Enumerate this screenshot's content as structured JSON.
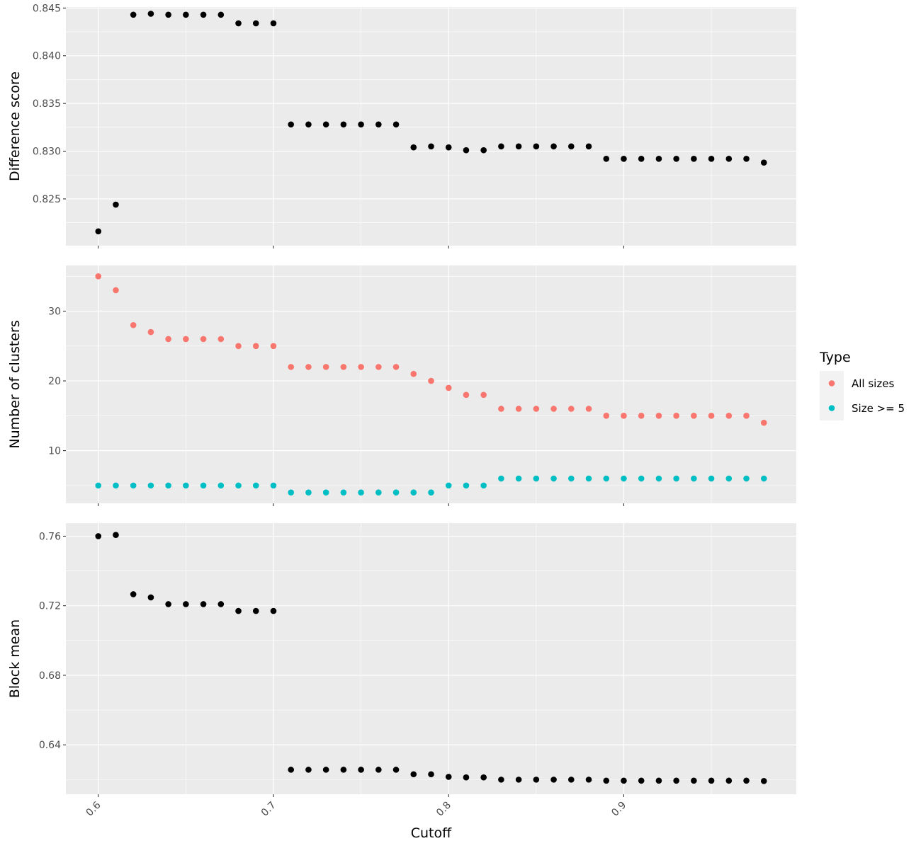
{
  "chart_data": {
    "type": "scatter",
    "xlabel": "Cutoff",
    "x_ticks": [
      0.6,
      0.7,
      0.8,
      0.9
    ],
    "x_tick_labels": [
      "0.6",
      "0.7",
      "0.8",
      "0.9"
    ],
    "xlim": [
      0.5815,
      0.9985
    ],
    "x": [
      0.6,
      0.61,
      0.62,
      0.63,
      0.64,
      0.65,
      0.66,
      0.67,
      0.68,
      0.69,
      0.7,
      0.71,
      0.72,
      0.73,
      0.74,
      0.75,
      0.76,
      0.77,
      0.78,
      0.79,
      0.8,
      0.81,
      0.82,
      0.83,
      0.84,
      0.85,
      0.86,
      0.87,
      0.88,
      0.89,
      0.9,
      0.91,
      0.92,
      0.93,
      0.94,
      0.95,
      0.96,
      0.97,
      0.98
    ],
    "grid": true,
    "legend": {
      "title": "Type",
      "position": "right",
      "entries": [
        {
          "label": "All sizes",
          "color": "#F8766D"
        },
        {
          "label": "Size >= 5",
          "color": "#00BFC4"
        }
      ]
    },
    "panels": [
      {
        "ylabel": "Difference score",
        "y_ticks": [
          0.825,
          0.83,
          0.835,
          0.84,
          0.845
        ],
        "y_tick_labels": [
          "0.825",
          "0.830",
          "0.835",
          "0.840",
          "0.845"
        ],
        "ylim": [
          0.8201,
          0.8451
        ],
        "series": [
          {
            "color": "#000000",
            "values": [
              0.8216,
              0.8244,
              0.8443,
              0.8444,
              0.8443,
              0.8443,
              0.8443,
              0.8443,
              0.8434,
              0.8434,
              0.8434,
              0.8328,
              0.8328,
              0.8328,
              0.8328,
              0.8328,
              0.8328,
              0.8328,
              0.8304,
              0.8305,
              0.8304,
              0.8301,
              0.8301,
              0.8305,
              0.8305,
              0.8305,
              0.8305,
              0.8305,
              0.8305,
              0.8292,
              0.8292,
              0.8292,
              0.8292,
              0.8292,
              0.8292,
              0.8292,
              0.8292,
              0.8292,
              0.8288
            ]
          }
        ]
      },
      {
        "ylabel": "Number of clusters",
        "y_ticks": [
          10,
          20,
          30
        ],
        "y_tick_labels": [
          "10",
          "20",
          "30"
        ],
        "ylim": [
          2.45,
          36.55
        ],
        "series": [
          {
            "name": "All sizes",
            "color": "#F8766D",
            "values": [
              35,
              33,
              28,
              27,
              26,
              26,
              26,
              26,
              25,
              25,
              25,
              22,
              22,
              22,
              22,
              22,
              22,
              22,
              21,
              20,
              19,
              18,
              18,
              16,
              16,
              16,
              16,
              16,
              16,
              15,
              15,
              15,
              15,
              15,
              15,
              15,
              15,
              15,
              14
            ]
          },
          {
            "name": "Size >= 5",
            "color": "#00BFC4",
            "values": [
              5,
              5,
              5,
              5,
              5,
              5,
              5,
              5,
              5,
              5,
              5,
              4,
              4,
              4,
              4,
              4,
              4,
              4,
              4,
              4,
              5,
              5,
              5,
              6,
              6,
              6,
              6,
              6,
              6,
              6,
              6,
              6,
              6,
              6,
              6,
              6,
              6,
              6,
              6
            ]
          }
        ]
      },
      {
        "ylabel": "Block mean",
        "y_ticks": [
          0.64,
          0.68,
          0.72,
          0.76
        ],
        "y_tick_labels": [
          "0.64",
          "0.68",
          "0.72",
          "0.76"
        ],
        "ylim": [
          0.6116,
          0.7675
        ],
        "series": [
          {
            "color": "#000000",
            "values": [
              0.76,
              0.7607,
              0.7266,
              0.7248,
              0.7209,
              0.7209,
              0.7209,
              0.7209,
              0.717,
              0.717,
              0.717,
              0.6257,
              0.6257,
              0.6257,
              0.6257,
              0.6257,
              0.6257,
              0.6257,
              0.6231,
              0.6231,
              0.6216,
              0.6213,
              0.6213,
              0.62,
              0.62,
              0.62,
              0.62,
              0.62,
              0.62,
              0.6194,
              0.6194,
              0.6194,
              0.6194,
              0.6194,
              0.6194,
              0.6194,
              0.6194,
              0.6194,
              0.6192
            ]
          }
        ]
      }
    ]
  }
}
